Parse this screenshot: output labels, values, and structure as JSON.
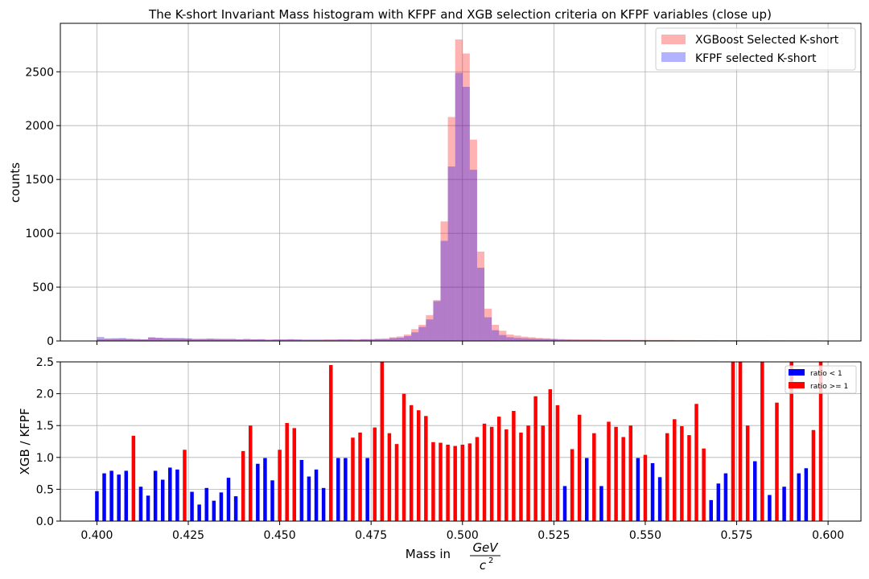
{
  "chart_data": [
    {
      "type": "histogram",
      "title": "The K-short Invariant Mass histogram with KFPF and XGB selection criteria on KFPF variables (close up)",
      "ylabel": "counts",
      "xlim": [
        0.39,
        0.609
      ],
      "ylim": [
        0,
        2950
      ],
      "yticks": [
        0,
        500,
        1000,
        1500,
        2000,
        2500
      ],
      "grid": true,
      "legend_position": "top-right",
      "bin_start": 0.4,
      "bin_width": 0.002,
      "series": [
        {
          "name": "XGBoost Selected K-short",
          "color": "#ff0000",
          "opacity": 0.3,
          "values": [
            18,
            18,
            20,
            20,
            16,
            15,
            15,
            32,
            28,
            25,
            25,
            25,
            22,
            18,
            18,
            20,
            18,
            18,
            18,
            15,
            18,
            15,
            16,
            12,
            14,
            14,
            16,
            14,
            12,
            12,
            12,
            14,
            14,
            16,
            15,
            14,
            18,
            18,
            22,
            24,
            35,
            42,
            60,
            110,
            150,
            240,
            380,
            1110,
            2080,
            2800,
            2670,
            1870,
            830,
            300,
            150,
            95,
            60,
            50,
            40,
            35,
            28,
            25,
            22,
            18,
            16,
            15,
            15,
            15,
            14,
            12,
            12,
            12,
            12,
            10,
            10,
            10,
            10,
            10,
            10,
            9,
            9,
            9,
            8,
            8,
            8,
            8,
            8,
            8,
            7,
            7,
            7,
            7,
            7,
            7,
            6,
            6,
            6,
            6,
            6,
            5
          ]
        },
        {
          "name": "KFPF selected K-short",
          "color": "#0000ff",
          "opacity": 0.3,
          "values": [
            38,
            24,
            25,
            27,
            22,
            19,
            15,
            34,
            30,
            27,
            27,
            26,
            24,
            19,
            20,
            22,
            20,
            19,
            19,
            16,
            18,
            15,
            16,
            12,
            14,
            14,
            16,
            14,
            12,
            12,
            12,
            12,
            12,
            14,
            14,
            12,
            15,
            14,
            16,
            16,
            26,
            30,
            45,
            80,
            130,
            200,
            370,
            930,
            1620,
            2490,
            2360,
            1590,
            680,
            220,
            100,
            55,
            35,
            28,
            25,
            22,
            20,
            18,
            15,
            13,
            12,
            11,
            10,
            10,
            10,
            9,
            9,
            9,
            9,
            8,
            8,
            7,
            7,
            7,
            7,
            6,
            6,
            6,
            6,
            6,
            6,
            5,
            5,
            5,
            5,
            5,
            5,
            5,
            4,
            4,
            4,
            4,
            4,
            4,
            3,
            3
          ]
        }
      ]
    },
    {
      "type": "bar",
      "xlabel": "Mass in GeV / c²",
      "xlabel_main": "Mass in",
      "xlabel_numerator": "GeV",
      "xlabel_denominator": "c",
      "xlabel_exponent": "2",
      "ylabel": "XGB / KFPF",
      "xlim": [
        0.39,
        0.609
      ],
      "ylim": [
        0,
        2.5
      ],
      "xticks": [
        0.4,
        0.425,
        0.45,
        0.475,
        0.5,
        0.525,
        0.55,
        0.575,
        0.6
      ],
      "xtick_labels": [
        "0.400",
        "0.425",
        "0.450",
        "0.475",
        "0.500",
        "0.525",
        "0.550",
        "0.575",
        "0.600"
      ],
      "yticks": [
        0,
        0.5,
        1.0,
        1.5,
        2.0,
        2.5
      ],
      "ytick_labels": [
        "0.0",
        "0.5",
        "1.0",
        "1.5",
        "2.0",
        "2.5"
      ],
      "grid": true,
      "legend_position": "top-right",
      "bin_start": 0.4,
      "bin_width": 0.002,
      "threshold": 1,
      "legend": [
        {
          "name": "ratio < 1",
          "color": "#0000ff"
        },
        {
          "name": "ratio >= 1",
          "color": "#ff0000"
        }
      ],
      "ratio": [
        0.47,
        0.75,
        0.79,
        0.73,
        0.79,
        1.34,
        0.54,
        0.4,
        0.79,
        0.65,
        0.84,
        0.81,
        1.12,
        0.46,
        0.26,
        0.52,
        0.32,
        0.45,
        0.68,
        0.39,
        1.1,
        1.5,
        0.9,
        0.99,
        0.64,
        1.12,
        1.54,
        1.46,
        0.96,
        0.7,
        0.81,
        0.52,
        2.45,
        0.99,
        0.99,
        1.31,
        1.39,
        0.99,
        1.47,
        2.5,
        1.38,
        1.21,
        2.0,
        1.82,
        1.74,
        1.65,
        1.24,
        1.23,
        1.2,
        1.18,
        1.2,
        1.22,
        1.32,
        1.53,
        1.48,
        1.64,
        1.44,
        1.73,
        1.39,
        1.5,
        1.96,
        1.5,
        2.07,
        1.82,
        0.55,
        1.13,
        1.67,
        0.99,
        1.38,
        0.55,
        1.56,
        1.48,
        1.32,
        1.5,
        0.99,
        1.04,
        0.91,
        0.69,
        1.38,
        1.6,
        1.49,
        1.35,
        1.84,
        1.14,
        0.33,
        0.59,
        0.75,
        2.5,
        2.5,
        1.5,
        0.94,
        2.5,
        0.41,
        1.86,
        0.54,
        2.5,
        0.75,
        0.83,
        1.43,
        2.5
      ]
    }
  ]
}
